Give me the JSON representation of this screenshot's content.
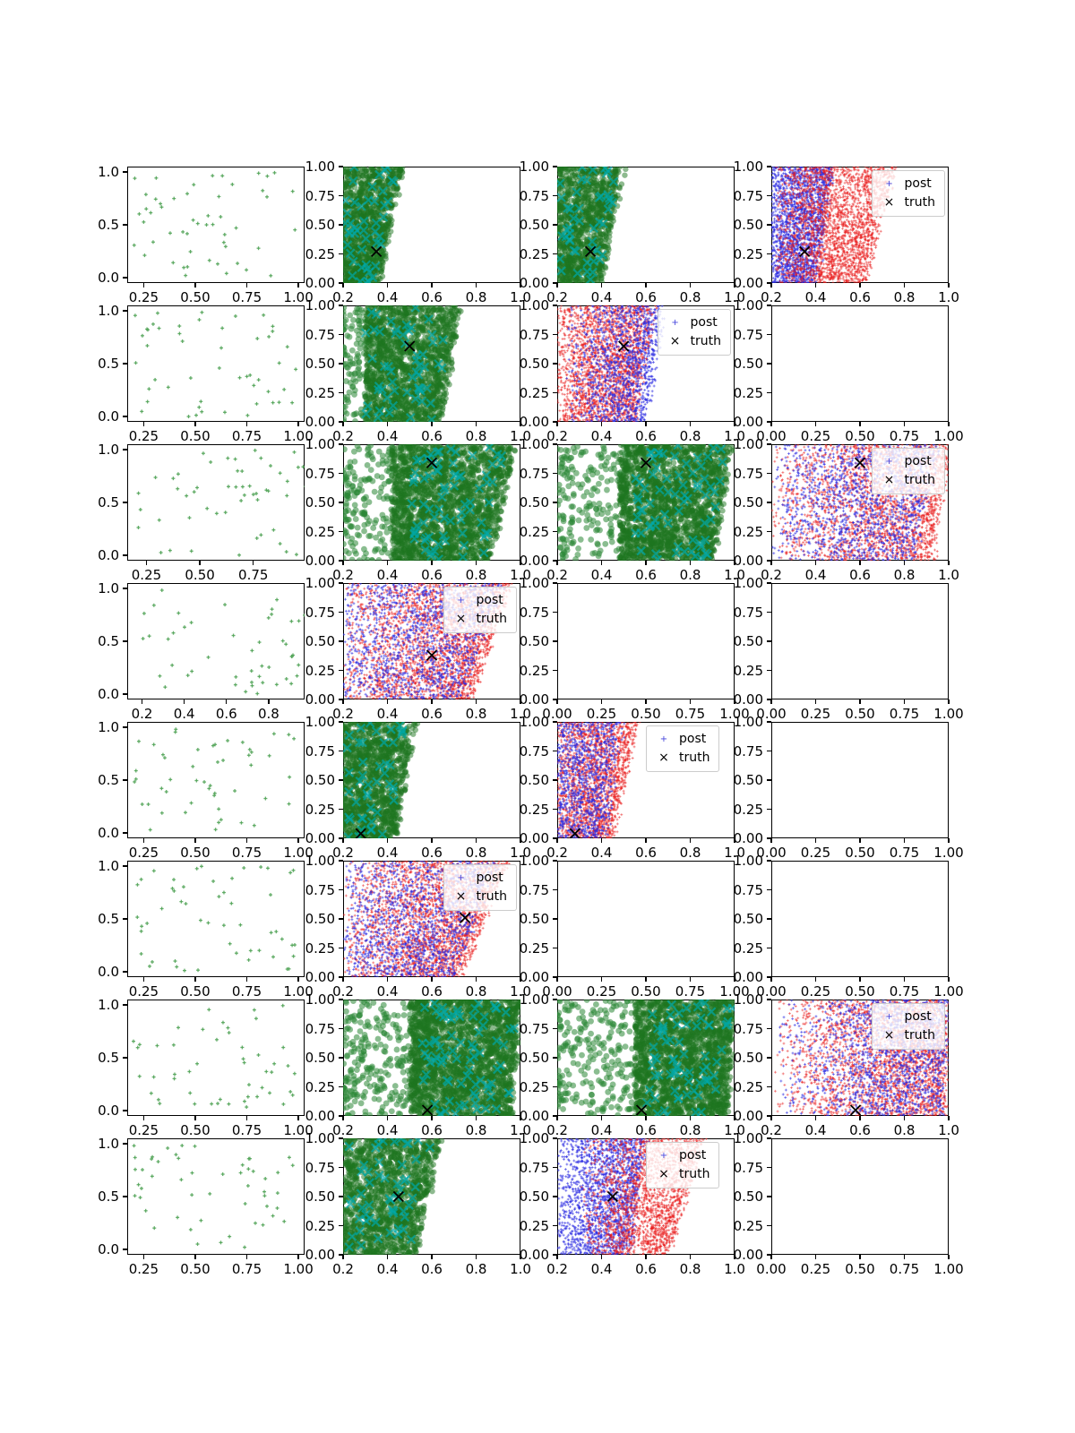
{
  "page": {
    "background": "#ffffff"
  },
  "chart_data": {
    "type": "scatter",
    "layout": "8x4-grid",
    "legend_labels": {
      "post": "post",
      "truth": "truth"
    },
    "colors": {
      "sparse_green": "rgba(86,166,92,0.9)",
      "dense_green": "rgba(30,118,32,0.5)",
      "circle_green": "rgba(42,134,52,0.55)",
      "teal_x": "rgba(0,168,168,0.7)",
      "blue": "rgba(46,46,226,0.55)",
      "red": "rgba(232,28,28,0.45)",
      "truth": "#000000"
    },
    "tick_presets": {
      "A": {
        "xvals": [
          0.25,
          0.5,
          0.75,
          1.0
        ],
        "xlabels": [
          "0.25",
          "0.50",
          "0.75",
          "1.00"
        ],
        "xlim": [
          0.17,
          1.03
        ],
        "yvals": [
          1.0,
          0.5,
          0.0
        ],
        "ylabels": [
          "1.0",
          "0.5",
          "0.0"
        ],
        "ylim": [
          -0.05,
          1.05
        ]
      },
      "A3": {
        "xvals": [
          0.25,
          0.5,
          0.75
        ],
        "xlabels": [
          "0.25",
          "0.50",
          "0.75"
        ],
        "xlim": [
          0.16,
          0.99
        ],
        "yvals": [
          1.0,
          0.5,
          0.0
        ],
        "ylabels": [
          "1.0",
          "0.5",
          "0.0"
        ],
        "ylim": [
          -0.05,
          1.05
        ]
      },
      "A4": {
        "xvals": [
          0.2,
          0.4,
          0.6,
          0.8
        ],
        "xlabels": [
          "0.2",
          "0.4",
          "0.6",
          "0.8"
        ],
        "xlim": [
          0.13,
          0.97
        ],
        "yvals": [
          1.0,
          0.5,
          0.0
        ],
        "ylabels": [
          "1.0",
          "0.5",
          "0.0"
        ],
        "ylim": [
          -0.05,
          1.05
        ]
      },
      "B": {
        "xvals": [
          0.2,
          0.4,
          0.6,
          0.8,
          1.0
        ],
        "xlabels": [
          "0.2",
          "0.4",
          "0.6",
          "0.8",
          "1.0"
        ],
        "xlim": [
          0.2,
          1.0
        ],
        "yvals": [
          1.0,
          0.75,
          0.5,
          0.25,
          0.0
        ],
        "ylabels": [
          "1.00",
          "0.75",
          "0.50",
          "0.25",
          "0.00"
        ],
        "ylim": [
          0,
          1
        ]
      },
      "C": {
        "xvals": [
          0.0,
          0.25,
          0.5,
          0.75,
          1.0
        ],
        "xlabels": [
          "0.00",
          "0.25",
          "0.50",
          "0.75",
          "1.00"
        ],
        "xlim": [
          0,
          1
        ],
        "yvals": [
          1.0,
          0.75,
          0.5,
          0.25,
          0.0
        ],
        "ylabels": [
          "1.00",
          "0.75",
          "0.50",
          "0.25",
          "0.00"
        ],
        "ylim": [
          0,
          1
        ]
      }
    },
    "subplots": [
      {
        "row": 1,
        "col": 1,
        "preset": "A",
        "clusters": [
          {
            "kind": "dots",
            "n": 52
          }
        ],
        "truth": null,
        "legend": null
      },
      {
        "row": 1,
        "col": 2,
        "preset": "B",
        "clusters": [
          {
            "kind": "band",
            "xl": 0.2,
            "xrb": 0.36,
            "xrt": 0.47,
            "n": 1100
          },
          {
            "kind": "xmarks",
            "xl": 0.21,
            "xrb": 0.34,
            "xrt": 0.45,
            "n": 48
          }
        ],
        "truth": [
          0.35,
          0.27
        ],
        "legend": null
      },
      {
        "row": 1,
        "col": 3,
        "preset": "B",
        "clusters": [
          {
            "kind": "band",
            "xl": 0.2,
            "xrb": 0.4,
            "xrt": 0.5,
            "n": 1100
          },
          {
            "kind": "xmarks",
            "xl": 0.21,
            "xrb": 0.38,
            "xrt": 0.48,
            "n": 48
          }
        ],
        "truth": [
          0.35,
          0.27
        ],
        "legend": null
      },
      {
        "row": 1,
        "col": 4,
        "preset": "B",
        "clusters": [
          {
            "kind": "cloud",
            "color": "blue",
            "xl": 0.2,
            "xrb": 0.4,
            "xrt": 0.48,
            "n": 1800,
            "bias": 0.9
          },
          {
            "kind": "cloud",
            "color": "red",
            "xl": 0.22,
            "xrb": 0.62,
            "xrt": 0.76,
            "n": 2400,
            "bias": 0.7
          }
        ],
        "truth": [
          0.35,
          0.27
        ],
        "legend": "tr"
      },
      {
        "row": 2,
        "col": 1,
        "preset": "A",
        "clusters": [
          {
            "kind": "dots",
            "n": 50
          }
        ],
        "truth": null,
        "legend": null
      },
      {
        "row": 2,
        "col": 2,
        "preset": "B",
        "clusters": [
          {
            "kind": "circles",
            "x0": 0.2,
            "x1": 0.48,
            "n": 220
          },
          {
            "kind": "band",
            "xl": 0.3,
            "xrb": 0.64,
            "xrt": 0.73,
            "n": 1500
          },
          {
            "kind": "xmarks",
            "xl": 0.3,
            "xrb": 0.6,
            "xrt": 0.7,
            "n": 55
          }
        ],
        "truth": [
          0.5,
          0.65
        ],
        "legend": null
      },
      {
        "row": 2,
        "col": 3,
        "preset": "B",
        "clusters": [
          {
            "kind": "cloud",
            "color": "red",
            "xl": 0.2,
            "xrb": 0.55,
            "xrt": 0.64,
            "n": 2200,
            "bias": 0.75
          },
          {
            "kind": "cloud",
            "color": "blue",
            "xl": 0.24,
            "xrb": 0.6,
            "xrt": 0.68,
            "n": 1200,
            "bias": 0.55
          }
        ],
        "truth": [
          0.5,
          0.65
        ],
        "legend": "tr"
      },
      {
        "row": 2,
        "col": 4,
        "preset": "C",
        "clusters": [],
        "truth": null,
        "legend": null
      },
      {
        "row": 3,
        "col": 1,
        "preset": "A3",
        "clusters": [
          {
            "kind": "dots",
            "n": 52
          }
        ],
        "truth": null,
        "legend": null
      },
      {
        "row": 3,
        "col": 2,
        "preset": "B",
        "clusters": [
          {
            "kind": "circles",
            "x0": 0.2,
            "x1": 0.55,
            "n": 260
          },
          {
            "kind": "band",
            "xl": 0.42,
            "xrb": 0.86,
            "xrt": 0.98,
            "n": 2000
          },
          {
            "kind": "xmarks",
            "xl": 0.5,
            "xrb": 0.84,
            "xrt": 0.96,
            "n": 75
          }
        ],
        "truth": [
          0.6,
          0.84
        ],
        "legend": null
      },
      {
        "row": 3,
        "col": 3,
        "preset": "B",
        "clusters": [
          {
            "kind": "circles",
            "x0": 0.2,
            "x1": 0.55,
            "n": 220
          },
          {
            "kind": "band",
            "xl": 0.48,
            "xrb": 0.9,
            "xrt": 0.99,
            "n": 2000
          },
          {
            "kind": "xmarks",
            "xl": 0.55,
            "xrb": 0.88,
            "xrt": 0.97,
            "n": 70
          }
        ],
        "truth": [
          0.6,
          0.84
        ],
        "legend": null
      },
      {
        "row": 3,
        "col": 4,
        "preset": "B",
        "clusters": [
          {
            "kind": "cloud",
            "color": "red",
            "xl": 0.2,
            "xrb": 0.93,
            "xrt": 1.0,
            "n": 2400,
            "bias": 0.6
          },
          {
            "kind": "cloud",
            "color": "blue",
            "xl": 0.2,
            "xrb": 0.85,
            "xrt": 0.95,
            "n": 1400,
            "bias": 0.7
          }
        ],
        "truth": [
          0.6,
          0.84
        ],
        "legend": "tr"
      },
      {
        "row": 4,
        "col": 1,
        "preset": "A4",
        "clusters": [
          {
            "kind": "dots",
            "n": 48
          }
        ],
        "truth": null,
        "legend": null
      },
      {
        "row": 4,
        "col": 2,
        "preset": "B",
        "clusters": [
          {
            "kind": "cloud",
            "color": "red",
            "xl": 0.2,
            "xrb": 0.78,
            "xrt": 0.96,
            "n": 2600,
            "bias": 0.65
          },
          {
            "kind": "cloud",
            "color": "blue",
            "xl": 0.2,
            "xrb": 0.74,
            "xrt": 0.92,
            "n": 1400,
            "bias": 0.8
          }
        ],
        "truth": [
          0.6,
          0.38
        ],
        "legend": "tr"
      },
      {
        "row": 4,
        "col": 3,
        "preset": "C",
        "clusters": [],
        "truth": null,
        "legend": null
      },
      {
        "row": 4,
        "col": 4,
        "preset": "C",
        "clusters": [],
        "truth": null,
        "legend": null
      },
      {
        "row": 5,
        "col": 1,
        "preset": "A",
        "clusters": [
          {
            "kind": "dots",
            "n": 50
          }
        ],
        "truth": null,
        "legend": null
      },
      {
        "row": 5,
        "col": 2,
        "preset": "B",
        "clusters": [
          {
            "kind": "band",
            "xl": 0.2,
            "xrb": 0.43,
            "xrt": 0.53,
            "n": 1300
          },
          {
            "kind": "xmarks",
            "xl": 0.21,
            "xrb": 0.41,
            "xrt": 0.5,
            "n": 45
          }
        ],
        "truth": [
          0.28,
          0.04
        ],
        "legend": null
      },
      {
        "row": 5,
        "col": 3,
        "preset": "B",
        "clusters": [
          {
            "kind": "cloud",
            "color": "red",
            "xl": 0.2,
            "xrb": 0.45,
            "xrt": 0.56,
            "n": 1900,
            "bias": 0.8
          },
          {
            "kind": "cloud",
            "color": "blue",
            "xl": 0.2,
            "xrb": 0.41,
            "xrt": 0.5,
            "n": 1000,
            "bias": 1.0
          }
        ],
        "truth": [
          0.28,
          0.04
        ],
        "legend": "ct"
      },
      {
        "row": 5,
        "col": 4,
        "preset": "C",
        "clusters": [],
        "truth": null,
        "legend": null
      },
      {
        "row": 6,
        "col": 1,
        "preset": "A",
        "clusters": [
          {
            "kind": "dots",
            "n": 52
          }
        ],
        "truth": null,
        "legend": null
      },
      {
        "row": 6,
        "col": 2,
        "preset": "B",
        "clusters": [
          {
            "kind": "cloud",
            "color": "red",
            "xl": 0.2,
            "xrb": 0.73,
            "xrt": 0.94,
            "n": 2600,
            "bias": 0.6
          },
          {
            "kind": "cloud",
            "color": "blue",
            "xl": 0.2,
            "xrb": 0.7,
            "xrt": 0.9,
            "n": 1400,
            "bias": 0.75
          }
        ],
        "truth": [
          0.75,
          0.51
        ],
        "legend": "tr"
      },
      {
        "row": 6,
        "col": 3,
        "preset": "C",
        "clusters": [],
        "truth": null,
        "legend": null
      },
      {
        "row": 6,
        "col": 4,
        "preset": "C",
        "clusters": [],
        "truth": null,
        "legend": null
      },
      {
        "row": 7,
        "col": 1,
        "preset": "A",
        "clusters": [
          {
            "kind": "dots",
            "n": 50
          }
        ],
        "truth": null,
        "legend": null
      },
      {
        "row": 7,
        "col": 2,
        "preset": "B",
        "clusters": [
          {
            "kind": "circles",
            "x0": 0.2,
            "x1": 0.6,
            "n": 300
          },
          {
            "kind": "band",
            "xl": 0.5,
            "xrb": 0.96,
            "xrt": 1.0,
            "n": 2200
          },
          {
            "kind": "xmarks",
            "xl": 0.55,
            "xrb": 0.95,
            "xrt": 1.0,
            "n": 80
          }
        ],
        "truth": [
          0.58,
          0.05
        ],
        "legend": null
      },
      {
        "row": 7,
        "col": 3,
        "preset": "B",
        "clusters": [
          {
            "kind": "circles",
            "x0": 0.2,
            "x1": 0.6,
            "n": 260
          },
          {
            "kind": "band",
            "xl": 0.55,
            "xrb": 0.96,
            "xrt": 1.0,
            "n": 2000
          },
          {
            "kind": "xmarks",
            "xl": 0.6,
            "xrb": 0.95,
            "xrt": 1.0,
            "n": 70
          }
        ],
        "truth": [
          0.58,
          0.05
        ],
        "legend": null
      },
      {
        "row": 7,
        "col": 4,
        "preset": "B",
        "clusters": [
          {
            "kind": "cloud",
            "color": "red",
            "xl": 0.2,
            "xrb": 0.98,
            "xrt": 1.0,
            "n": 2600,
            "bias": 0.55
          },
          {
            "kind": "cloud",
            "color": "blue",
            "xl": 0.2,
            "xrb": 0.97,
            "xrt": 1.0,
            "n": 1500,
            "bias": 0.5
          }
        ],
        "truth": [
          0.58,
          0.05
        ],
        "legend": "tr"
      },
      {
        "row": 8,
        "col": 1,
        "preset": "A",
        "clusters": [
          {
            "kind": "dots",
            "n": 52
          }
        ],
        "truth": null,
        "legend": null
      },
      {
        "row": 8,
        "col": 2,
        "preset": "B",
        "clusters": [
          {
            "kind": "band",
            "xl": 0.2,
            "xrb": 0.53,
            "xrt": 0.64,
            "n": 1400
          },
          {
            "kind": "xmarks",
            "xl": 0.22,
            "xrb": 0.5,
            "xrt": 0.6,
            "n": 55
          }
        ],
        "truth": [
          0.45,
          0.5
        ],
        "legend": null
      },
      {
        "row": 8,
        "col": 3,
        "preset": "B",
        "clusters": [
          {
            "kind": "cloud",
            "color": "blue",
            "xl": 0.2,
            "xrb": 0.52,
            "xrt": 0.6,
            "n": 1700,
            "bias": 0.7
          },
          {
            "kind": "cloud",
            "color": "red",
            "xl": 0.3,
            "xrb": 0.7,
            "xrt": 0.86,
            "n": 1900,
            "bias": 0.55
          }
        ],
        "truth": [
          0.45,
          0.5
        ],
        "legend": "ct"
      },
      {
        "row": 8,
        "col": 4,
        "preset": "C",
        "clusters": [],
        "truth": null,
        "legend": null
      }
    ]
  }
}
